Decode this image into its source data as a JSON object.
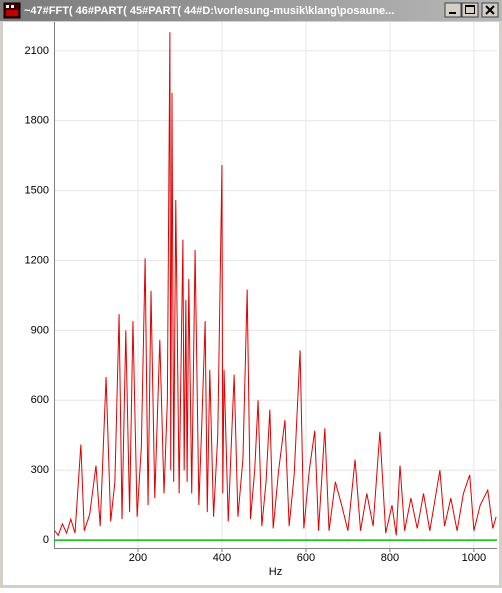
{
  "window": {
    "title": "~47#FFT( 46#PART( 45#PART( 44#D:\\vorlesung-musik\\klang\\posaune..."
  },
  "chart_data": {
    "type": "line",
    "x_label": "Hz",
    "x": [
      2,
      10,
      20,
      30,
      40,
      50,
      64,
      72,
      85,
      100,
      110,
      124,
      135,
      145,
      155,
      162,
      171,
      180,
      188,
      198,
      208,
      217,
      224,
      231,
      240,
      252,
      262,
      270,
      276,
      278,
      281,
      285,
      290,
      298,
      307,
      310,
      314,
      317,
      321,
      328,
      336,
      345,
      352,
      360,
      365,
      371,
      380,
      390,
      400,
      402,
      405,
      415,
      422,
      429,
      438,
      450,
      460,
      468,
      478,
      486,
      495,
      505,
      514,
      522,
      535,
      550,
      560,
      572,
      586,
      595,
      608,
      621,
      630,
      645,
      655,
      670,
      685,
      700,
      717,
      730,
      745,
      760,
      776,
      790,
      805,
      815,
      824,
      835,
      850,
      865,
      880,
      895,
      919,
      930,
      945,
      960,
      975,
      990,
      1000,
      1015,
      1033,
      1045,
      1053
    ],
    "series": [
      {
        "color": "#e00000",
        "values": [
          40,
          20,
          70,
          30,
          90,
          30,
          410,
          40,
          110,
          320,
          60,
          700,
          80,
          250,
          970,
          90,
          900,
          120,
          940,
          100,
          400,
          1210,
          150,
          1070,
          180,
          860,
          200,
          600,
          2180,
          300,
          1920,
          250,
          1460,
          200,
          1290,
          300,
          1030,
          250,
          1120,
          200,
          1245,
          150,
          500,
          940,
          120,
          730,
          100,
          450,
          1610,
          200,
          730,
          80,
          400,
          710,
          100,
          350,
          1075,
          90,
          300,
          600,
          60,
          250,
          560,
          50,
          300,
          515,
          60,
          280,
          815,
          50,
          300,
          470,
          40,
          480,
          40,
          250,
          150,
          40,
          345,
          40,
          200,
          60,
          465,
          30,
          150,
          20,
          320,
          40,
          180,
          50,
          200,
          40,
          300,
          60,
          180,
          40,
          200,
          280,
          40,
          150,
          215,
          50,
          100
        ]
      }
    ],
    "xlim": [
      0,
      1055
    ],
    "ylim": [
      -34,
      2224
    ],
    "xticks": [
      200,
      400,
      600,
      800,
      1000
    ],
    "yticks": [
      0,
      300,
      600,
      900,
      1200,
      1500,
      1800,
      2100
    ],
    "grid": true,
    "zero_line_color": "#00c000"
  }
}
